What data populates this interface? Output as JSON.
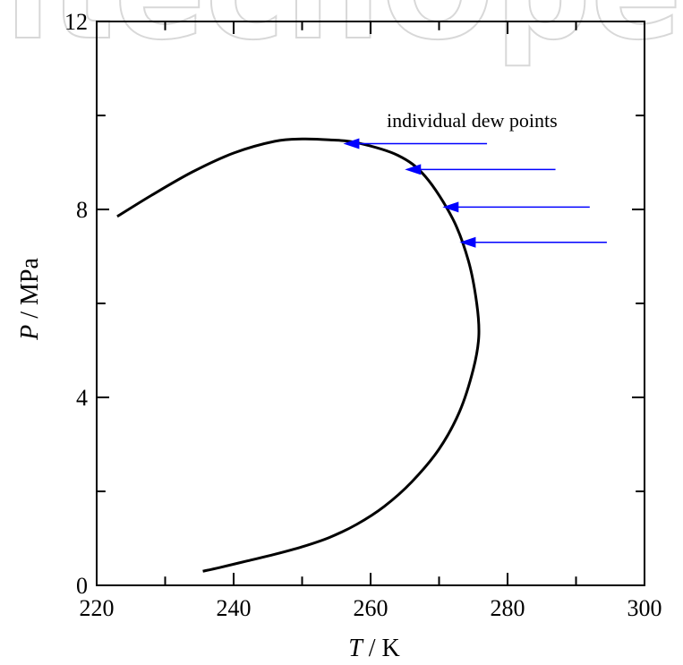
{
  "chart_data": {
    "type": "line",
    "title": "",
    "xlabel": {
      "var": "T",
      "unit": " / K"
    },
    "ylabel": {
      "var": "P",
      "unit": " / MPa"
    },
    "xlim": [
      220,
      300
    ],
    "ylim": [
      0,
      12
    ],
    "xticks": [
      220,
      240,
      260,
      280,
      300
    ],
    "yticks": [
      0,
      4,
      8,
      12
    ],
    "grid": false,
    "series": [
      {
        "color": "#000000",
        "points": [
          [
            235.5,
            0.3
          ],
          [
            238,
            0.38
          ],
          [
            242,
            0.52
          ],
          [
            246,
            0.66
          ],
          [
            250,
            0.82
          ],
          [
            254,
            1.02
          ],
          [
            258,
            1.3
          ],
          [
            262,
            1.68
          ],
          [
            266,
            2.2
          ],
          [
            270,
            2.9
          ],
          [
            273,
            3.7
          ],
          [
            275,
            4.6
          ],
          [
            275.8,
            5.3
          ],
          [
            275.5,
            6.0
          ],
          [
            274.3,
            6.9
          ],
          [
            272,
            7.8
          ],
          [
            268,
            8.7
          ],
          [
            264,
            9.15
          ],
          [
            258,
            9.42
          ],
          [
            254,
            9.48
          ],
          [
            250,
            9.5
          ],
          [
            246,
            9.45
          ],
          [
            240,
            9.2
          ],
          [
            234,
            8.8
          ],
          [
            228,
            8.3
          ],
          [
            223,
            7.85
          ]
        ]
      }
    ],
    "annotation": {
      "text": "individual dew points",
      "arrow_color": "#0000ff",
      "arrows": [
        {
          "from": [
            277,
            9.4
          ],
          "to": [
            256,
            9.4
          ]
        },
        {
          "from": [
            287,
            8.85
          ],
          "to": [
            265,
            8.85
          ]
        },
        {
          "from": [
            292,
            8.05
          ],
          "to": [
            270.5,
            8.05
          ]
        },
        {
          "from": [
            294.5,
            7.3
          ],
          "to": [
            273,
            7.3
          ]
        }
      ]
    }
  },
  "watermark": {
    "text": "IntechOpen",
    "color": "#d8d8d8"
  }
}
